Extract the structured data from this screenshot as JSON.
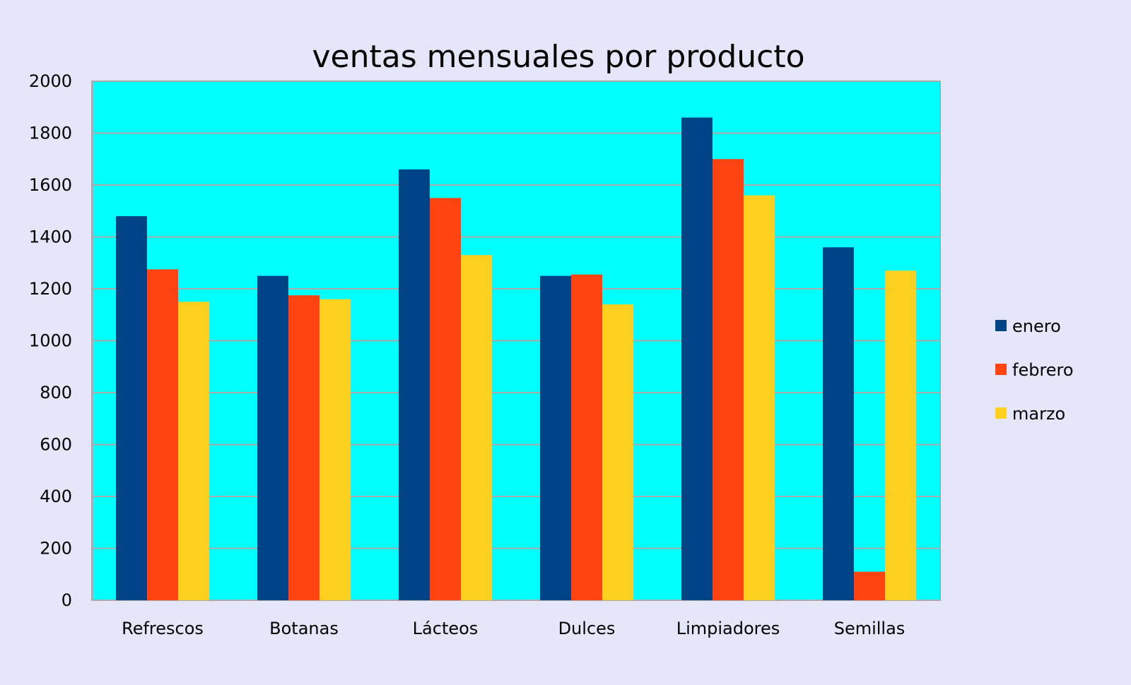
{
  "chart_data": {
    "type": "bar",
    "title": "ventas mensuales por producto",
    "xlabel": "",
    "ylabel": "",
    "ylim": [
      0,
      2000
    ],
    "yticks": [
      "0",
      "200",
      "400",
      "600",
      "800",
      "1000",
      "1200",
      "1400",
      "1600",
      "1800",
      "2000"
    ],
    "grid": true,
    "legend_position": "right",
    "plot_background": "#00ffff",
    "categories": [
      "Refrescos",
      "Botanas",
      "Lácteos",
      "Dulces",
      "Limpiadores",
      "Semillas"
    ],
    "series": [
      {
        "name": "enero",
        "color": "#004488",
        "values": [
          1480,
          1250,
          1660,
          1250,
          1860,
          1360
        ]
      },
      {
        "name": "febrero",
        "color": "#ff4411",
        "values": [
          1275,
          1175,
          1550,
          1255,
          1700,
          110
        ]
      },
      {
        "name": "marzo",
        "color": "#ffd020",
        "values": [
          1150,
          1160,
          1330,
          1140,
          1560,
          1270
        ]
      }
    ]
  }
}
